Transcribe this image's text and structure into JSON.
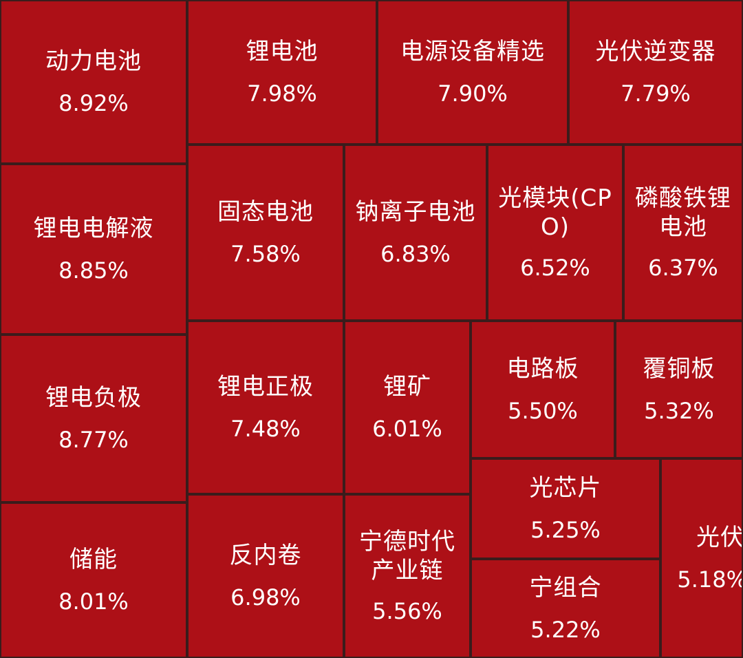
{
  "chart_data": {
    "type": "treemap",
    "title": "",
    "items": [
      {
        "name": "动力电池",
        "value": "8.92%"
      },
      {
        "name": "锂电池",
        "value": "7.98%"
      },
      {
        "name": "电源设备精选",
        "value": "7.90%"
      },
      {
        "name": "光伏逆变器",
        "value": "7.79%"
      },
      {
        "name": "锂电电解液",
        "value": "8.85%"
      },
      {
        "name": "固态电池",
        "value": "7.58%"
      },
      {
        "name": "钠离子电池",
        "value": "6.83%"
      },
      {
        "name": "光模块(CPO)",
        "value": "6.52%"
      },
      {
        "name": "磷酸铁锂电池",
        "value": "6.37%"
      },
      {
        "name": "锂电负极",
        "value": "8.77%"
      },
      {
        "name": "锂电正极",
        "value": "7.48%"
      },
      {
        "name": "锂矿",
        "value": "6.01%"
      },
      {
        "name": "电路板",
        "value": "5.50%"
      },
      {
        "name": "覆铜板",
        "value": "5.32%"
      },
      {
        "name": "光芯片",
        "value": "5.25%"
      },
      {
        "name": "储能",
        "value": "8.01%"
      },
      {
        "name": "反内卷",
        "value": "6.98%"
      },
      {
        "name": "宁德时代产业链",
        "value": "5.56%"
      },
      {
        "name": "宁组合",
        "value": "5.22%"
      },
      {
        "name": "光伏",
        "value": "5.18%"
      }
    ],
    "colors": {
      "tile": "#ad1017",
      "border": "#3a1c1c",
      "text": "#ffffff"
    }
  }
}
